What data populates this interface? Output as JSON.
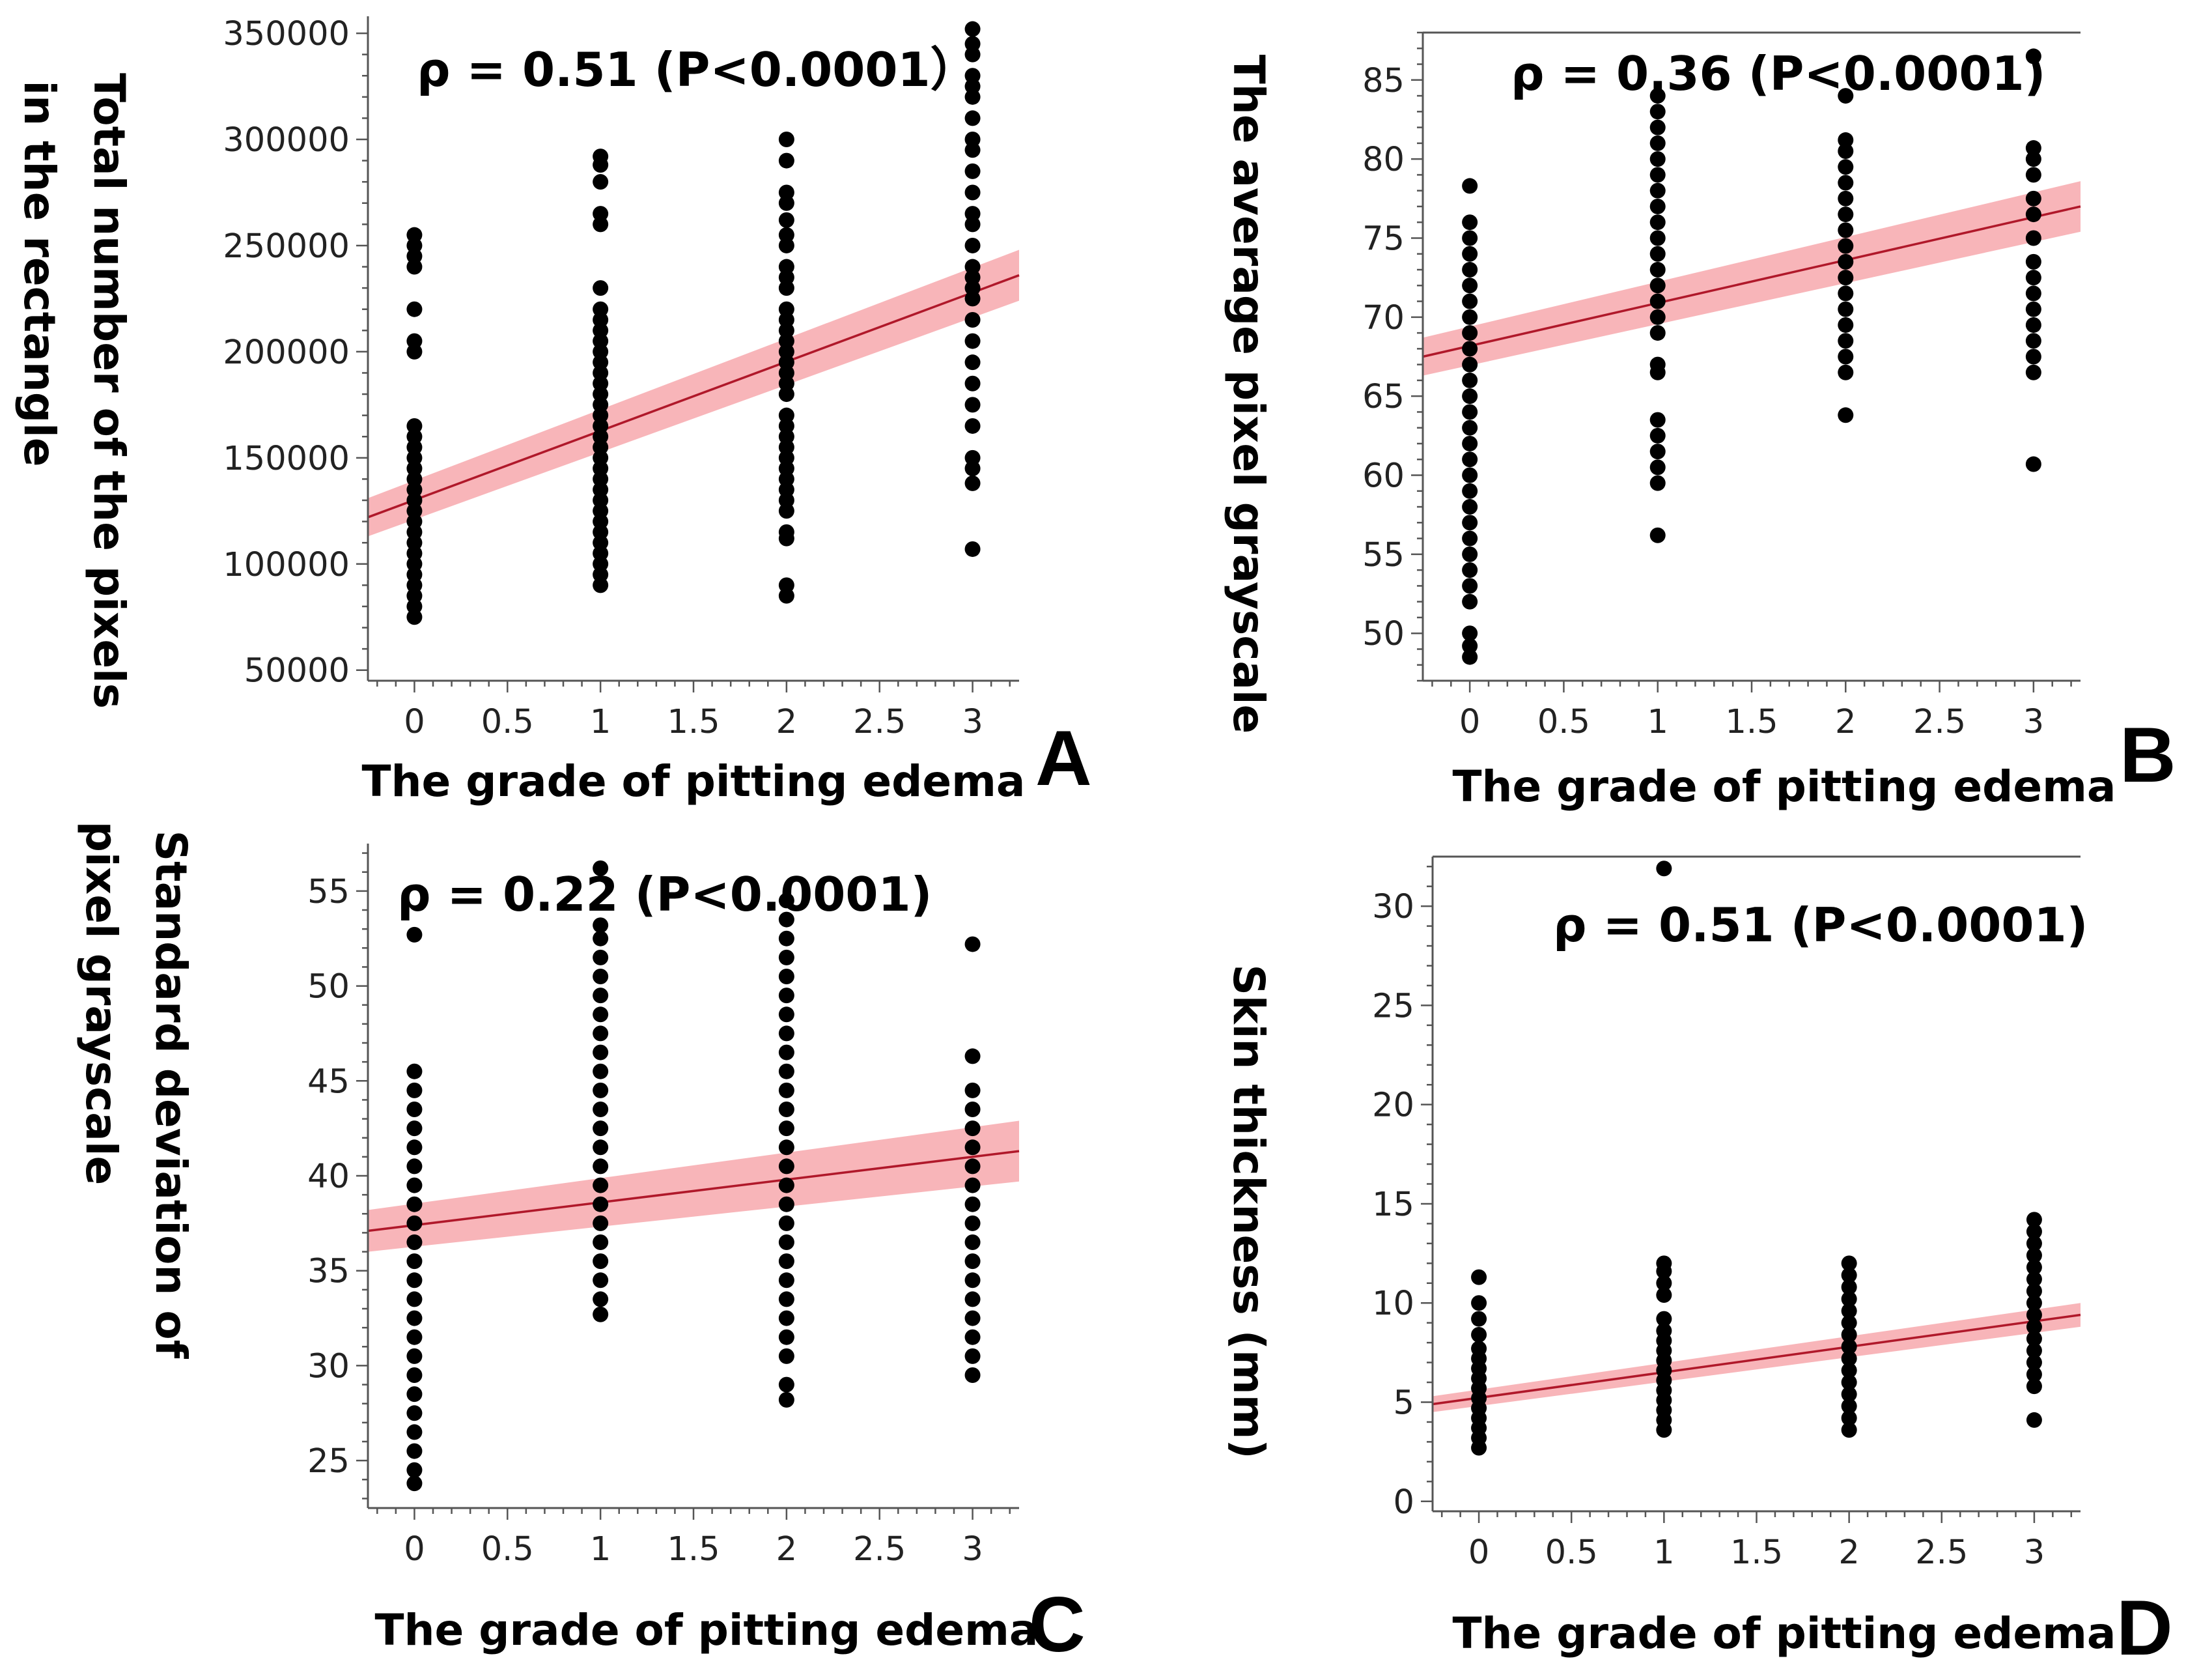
{
  "colors": {
    "points": "#000000",
    "fit_line": "#b0182a",
    "confidence_band": "#f7a8ad",
    "axis": "#555555"
  },
  "chart_data": [
    {
      "panel": "A",
      "type": "scatter",
      "xlabel": "The grade of pitting edema",
      "ylabel": [
        "Total number of the pixels",
        "in the rectangle"
      ],
      "annotation": "ρ = 0.51 (P<0.0001）",
      "xlim": [
        -0.25,
        3.25
      ],
      "ylim": [
        45000,
        358000
      ],
      "x_ticks": [
        0,
        0.5,
        1,
        1.5,
        2,
        2.5,
        3
      ],
      "x_tick_labels": [
        "0",
        "0.5",
        "1",
        "1.5",
        "2",
        "2.5",
        "3"
      ],
      "y_ticks": [
        50000,
        100000,
        150000,
        200000,
        250000,
        300000,
        350000
      ],
      "y_tick_labels": [
        "50000",
        "100000",
        "150000",
        "200000",
        "250000",
        "300000",
        "350000"
      ],
      "fit": {
        "x": [
          -0.25,
          3.25
        ],
        "y": [
          122000,
          236000
        ],
        "band": [
          9000,
          12000
        ]
      },
      "groups": [
        {
          "x": 0,
          "y": [
            75000,
            80000,
            85000,
            90000,
            95000,
            100000,
            105000,
            110000,
            115000,
            120000,
            125000,
            130000,
            135000,
            140000,
            145000,
            150000,
            155000,
            160000,
            165000,
            200000,
            205000,
            220000,
            240000,
            245000,
            250000,
            255000
          ]
        },
        {
          "x": 1,
          "y": [
            90000,
            95000,
            100000,
            105000,
            110000,
            115000,
            120000,
            125000,
            130000,
            135000,
            140000,
            145000,
            150000,
            155000,
            160000,
            165000,
            170000,
            175000,
            180000,
            185000,
            190000,
            195000,
            200000,
            205000,
            210000,
            215000,
            220000,
            230000,
            260000,
            265000,
            280000,
            288000,
            292000
          ]
        },
        {
          "x": 2,
          "y": [
            85000,
            90000,
            112000,
            115000,
            125000,
            130000,
            135000,
            140000,
            145000,
            150000,
            155000,
            160000,
            165000,
            170000,
            180000,
            185000,
            190000,
            195000,
            200000,
            205000,
            210000,
            215000,
            220000,
            230000,
            235000,
            240000,
            250000,
            255000,
            262000,
            270000,
            275000,
            290000,
            300000
          ]
        },
        {
          "x": 3,
          "y": [
            107000,
            138000,
            145000,
            150000,
            165000,
            175000,
            185000,
            195000,
            205000,
            215000,
            225000,
            230000,
            235000,
            240000,
            250000,
            260000,
            265000,
            275000,
            285000,
            295000,
            300000,
            310000,
            320000,
            325000,
            330000,
            340000,
            345000,
            352000
          ]
        }
      ]
    },
    {
      "panel": "B",
      "type": "scatter",
      "xlabel": "The grade of pitting edema",
      "ylabel": [
        "The average pixel grayscale"
      ],
      "annotation": "ρ = 0.36 (P<0.0001)",
      "xlim": [
        -0.25,
        3.25
      ],
      "ylim": [
        47,
        88
      ],
      "x_ticks": [
        0,
        0.5,
        1,
        1.5,
        2,
        2.5,
        3
      ],
      "x_tick_labels": [
        "0",
        "0.5",
        "1",
        "1.5",
        "2",
        "2.5",
        "3"
      ],
      "y_ticks": [
        50,
        55,
        60,
        65,
        70,
        75,
        80,
        85
      ],
      "y_tick_labels": [
        "50",
        "55",
        "60",
        "65",
        "70",
        "75",
        "80",
        "85"
      ],
      "fit": {
        "x": [
          -0.25,
          3.25
        ],
        "y": [
          67.5,
          77.0
        ],
        "band": [
          1.2,
          1.6
        ]
      },
      "groups": [
        {
          "x": 0,
          "y": [
            48.5,
            49.2,
            50.0,
            52.0,
            53.0,
            54.0,
            55.0,
            56.0,
            57.0,
            58.0,
            59.0,
            60.0,
            61.0,
            62.0,
            63.0,
            64.0,
            65.0,
            66.0,
            67.0,
            68.0,
            69.0,
            70.0,
            71.0,
            72.0,
            73.0,
            74.0,
            75.0,
            76.0,
            78.3
          ]
        },
        {
          "x": 1,
          "y": [
            56.2,
            59.5,
            60.5,
            61.5,
            62.5,
            63.5,
            66.5,
            67.0,
            69.0,
            70.0,
            71.0,
            72.0,
            73.0,
            74.0,
            75.0,
            76.0,
            77.0,
            78.0,
            79.0,
            80.0,
            81.0,
            82.0,
            83.0,
            84.0
          ]
        },
        {
          "x": 2,
          "y": [
            63.8,
            66.5,
            67.5,
            68.5,
            69.5,
            70.5,
            71.5,
            72.5,
            73.5,
            74.5,
            75.5,
            76.5,
            77.5,
            78.5,
            79.5,
            80.5,
            81.2,
            84.0
          ]
        },
        {
          "x": 3,
          "y": [
            60.7,
            66.5,
            67.5,
            68.5,
            69.5,
            70.5,
            71.5,
            72.5,
            73.5,
            75.0,
            76.5,
            77.5,
            79.0,
            80.0,
            80.7,
            86.5
          ]
        }
      ]
    },
    {
      "panel": "C",
      "type": "scatter",
      "xlabel": "The grade of pitting edema",
      "ylabel": [
        "Standard deviation of",
        "pixel grayscale"
      ],
      "annotation": "ρ = 0.22 (P<0.0001)",
      "xlim": [
        -0.25,
        3.25
      ],
      "ylim": [
        22.5,
        57.5
      ],
      "x_ticks": [
        0,
        0.5,
        1,
        1.5,
        2,
        2.5,
        3
      ],
      "x_tick_labels": [
        "0",
        "0.5",
        "1",
        "1.5",
        "2",
        "2.5",
        "3"
      ],
      "y_ticks": [
        25,
        30,
        35,
        40,
        45,
        50,
        55
      ],
      "y_tick_labels": [
        "25",
        "30",
        "35",
        "40",
        "45",
        "50",
        "55"
      ],
      "fit": {
        "x": [
          -0.25,
          3.25
        ],
        "y": [
          37.1,
          41.3
        ],
        "band": [
          1.1,
          1.6
        ]
      },
      "groups": [
        {
          "x": 0,
          "y": [
            23.8,
            24.5,
            25.5,
            26.5,
            27.5,
            28.5,
            29.5,
            30.5,
            31.5,
            32.5,
            33.5,
            34.5,
            35.5,
            36.5,
            37.5,
            38.5,
            39.5,
            40.5,
            41.5,
            42.5,
            43.5,
            44.5,
            45.5,
            52.7
          ]
        },
        {
          "x": 1,
          "y": [
            32.7,
            33.5,
            34.5,
            35.5,
            36.5,
            37.5,
            38.5,
            39.5,
            40.5,
            41.5,
            42.5,
            43.5,
            44.5,
            45.5,
            46.5,
            47.5,
            48.5,
            49.5,
            50.5,
            51.5,
            52.5,
            53.2,
            56.2
          ]
        },
        {
          "x": 2,
          "y": [
            28.2,
            29.0,
            30.5,
            31.5,
            32.5,
            33.5,
            34.5,
            35.5,
            36.5,
            37.5,
            38.5,
            39.5,
            40.5,
            41.5,
            42.5,
            43.5,
            44.5,
            45.5,
            46.5,
            47.5,
            48.5,
            49.5,
            50.5,
            51.5,
            52.5,
            53.5,
            54.5
          ]
        },
        {
          "x": 3,
          "y": [
            29.5,
            30.5,
            31.5,
            32.5,
            33.5,
            34.5,
            35.5,
            36.5,
            37.5,
            38.5,
            39.5,
            40.5,
            41.5,
            42.5,
            43.5,
            44.5,
            46.3,
            52.2
          ]
        }
      ]
    },
    {
      "panel": "D",
      "type": "scatter",
      "xlabel": "The grade of pitting edema",
      "ylabel": [
        "Skin thickness (mm)"
      ],
      "annotation": "ρ = 0.51 (P<0.0001)",
      "xlim": [
        -0.25,
        3.25
      ],
      "ylim": [
        -0.5,
        32.5
      ],
      "x_ticks": [
        0,
        0.5,
        1,
        1.5,
        2,
        2.5,
        3
      ],
      "x_tick_labels": [
        "0",
        "0.5",
        "1",
        "1.5",
        "2",
        "2.5",
        "3"
      ],
      "y_ticks": [
        0,
        5,
        10,
        15,
        20,
        25,
        30
      ],
      "y_tick_labels": [
        "0",
        "5",
        "10",
        "15",
        "20",
        "25",
        "30"
      ],
      "fit": {
        "x": [
          -0.25,
          3.25
        ],
        "y": [
          4.9,
          9.4
        ],
        "band": [
          0.4,
          0.6
        ]
      },
      "groups": [
        {
          "x": 0,
          "y": [
            2.7,
            3.2,
            3.7,
            4.2,
            4.7,
            5.2,
            5.7,
            6.2,
            6.7,
            7.2,
            7.7,
            8.4,
            9.2,
            10.0,
            11.3
          ]
        },
        {
          "x": 1,
          "y": [
            3.6,
            4.1,
            4.6,
            5.1,
            5.6,
            6.1,
            6.6,
            7.1,
            7.6,
            8.1,
            8.6,
            9.2,
            10.4,
            11.0,
            11.6,
            12.0,
            31.9
          ]
        },
        {
          "x": 2,
          "y": [
            3.6,
            4.2,
            4.8,
            5.4,
            6.0,
            6.6,
            7.2,
            7.8,
            8.4,
            9.0,
            9.6,
            10.2,
            10.8,
            11.4,
            12.0
          ]
        },
        {
          "x": 3,
          "y": [
            4.1,
            5.8,
            6.4,
            7.0,
            7.6,
            8.2,
            8.8,
            9.4,
            10.0,
            10.6,
            11.2,
            11.8,
            12.4,
            13.0,
            13.6,
            14.2
          ]
        }
      ]
    }
  ]
}
